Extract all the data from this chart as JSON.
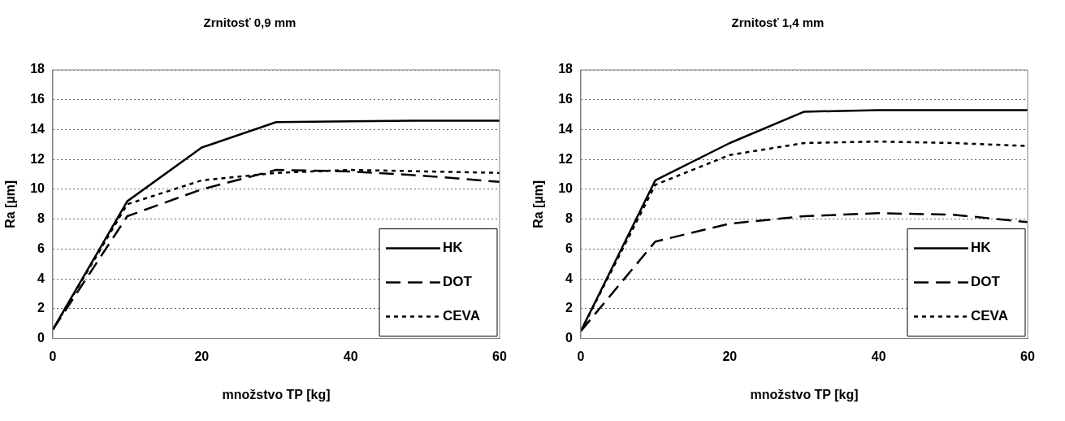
{
  "chart_data": [
    {
      "type": "line",
      "title": "Zrnitosť 0,9 mm",
      "xlabel": "množstvo TP [kg]",
      "ylabel": "Ra [µm]",
      "x": [
        0,
        10,
        20,
        30,
        40,
        50,
        60
      ],
      "xlim": [
        0,
        60
      ],
      "xticks": [
        0,
        20,
        40,
        60
      ],
      "ylim": [
        0,
        18
      ],
      "yticks": [
        0,
        2,
        4,
        6,
        8,
        10,
        12,
        14,
        16,
        18
      ],
      "grid": "y",
      "legend": "bottom right",
      "marker": "none",
      "series": [
        {
          "name": "HK",
          "color": "#000000",
          "line_style": "solid",
          "values": [
            0.6,
            9.2,
            12.8,
            14.5,
            14.55,
            14.6,
            14.6
          ]
        },
        {
          "name": "DOT",
          "color": "#000000",
          "line_style": "dashed",
          "values": [
            0.6,
            8.2,
            10.0,
            11.3,
            11.2,
            10.9,
            10.5
          ]
        },
        {
          "name": "CEVA",
          "color": "#000000",
          "line_style": "dotted",
          "values": [
            0.6,
            9.0,
            10.6,
            11.1,
            11.3,
            11.2,
            11.1
          ]
        }
      ]
    },
    {
      "type": "line",
      "title": "Zrnitosť 1,4 mm",
      "xlabel": "množstvo TP [kg]",
      "ylabel": "Ra [µm]",
      "x": [
        0,
        10,
        20,
        30,
        40,
        50,
        60
      ],
      "xlim": [
        0,
        60
      ],
      "xticks": [
        0,
        20,
        40,
        60
      ],
      "ylim": [
        0,
        18
      ],
      "yticks": [
        0,
        2,
        4,
        6,
        8,
        10,
        12,
        14,
        16,
        18
      ],
      "grid": "y",
      "legend": "bottom right",
      "marker": "none",
      "series": [
        {
          "name": "HK",
          "color": "#000000",
          "line_style": "solid",
          "values": [
            0.5,
            10.6,
            13.1,
            15.2,
            15.3,
            15.3,
            15.3
          ]
        },
        {
          "name": "DOT",
          "color": "#000000",
          "line_style": "dashed",
          "values": [
            0.5,
            6.5,
            7.7,
            8.2,
            8.4,
            8.3,
            7.8
          ]
        },
        {
          "name": "CEVA",
          "color": "#000000",
          "line_style": "dotted",
          "values": [
            0.5,
            10.3,
            12.3,
            13.1,
            13.2,
            13.1,
            12.9
          ]
        }
      ]
    }
  ]
}
